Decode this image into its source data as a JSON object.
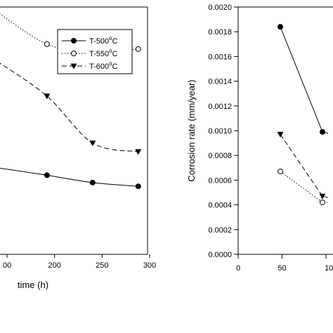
{
  "chart_data": [
    {
      "type": "line",
      "title": "",
      "xlabel": "time (h)",
      "ylabel": "",
      "x_ticks": [
        "00",
        "200",
        "250",
        "300"
      ],
      "xlim": [
        150,
        300
      ],
      "grid": false,
      "legend": {
        "placement": "top-right",
        "entries": [
          {
            "label": "T-500",
            "sup": "o",
            "unit": "C",
            "marker": "filled-circle",
            "line": "solid"
          },
          {
            "label": "T-550",
            "sup": "o",
            "unit": "C",
            "marker": "open-circle",
            "line": "dotted"
          },
          {
            "label": "T-600",
            "sup": "o",
            "unit": "C",
            "marker": "filled-triangle-down",
            "line": "dashed"
          }
        ]
      },
      "series": [
        {
          "name": "T-500°C",
          "x": [
            192,
            240,
            288
          ],
          "y": [
            0.32,
            0.29,
            0.275
          ]
        },
        {
          "name": "T-550°C",
          "x": [
            192,
            240,
            288
          ],
          "y": [
            0.85,
            0.815,
            0.83
          ]
        },
        {
          "name": "T-600°C",
          "x": [
            192,
            240,
            288
          ],
          "y": [
            0.64,
            0.45,
            0.415
          ]
        }
      ],
      "partial_left": {
        "T-550°C": [
          150,
          0.98
        ],
        "T-600°C": [
          150,
          0.78
        ],
        "T-500°C": [
          150,
          0.35
        ]
      }
    },
    {
      "type": "line",
      "title": "",
      "xlabel": "",
      "ylabel": "Corrosion rate (mm/year)",
      "y_ticks": [
        "0.0000",
        "0.0002",
        "0.0004",
        "0.0006",
        "0.0008",
        "0.0010",
        "0.0012",
        "0.0014",
        "0.0016",
        "0.0018",
        "0.0020"
      ],
      "x_ticks": [
        "0",
        "50",
        "10"
      ],
      "ylim": [
        0,
        0.002
      ],
      "xlim": [
        0,
        100
      ],
      "grid": false,
      "series": [
        {
          "name": "T-500°C",
          "x": [
            48,
            96
          ],
          "y": [
            0.00184,
            0.00099
          ]
        },
        {
          "name": "T-550°C",
          "x": [
            48,
            96
          ],
          "y": [
            0.00067,
            0.00042
          ]
        },
        {
          "name": "T-600°C",
          "x": [
            48,
            96
          ],
          "y": [
            0.00097,
            0.00047
          ]
        }
      ]
    }
  ]
}
